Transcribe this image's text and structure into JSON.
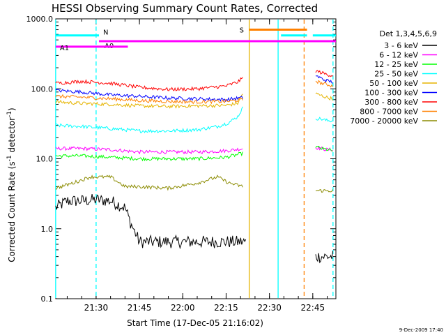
{
  "chart_data": {
    "type": "line",
    "title": "HESSI Observing Summary Count Rates, Corrected",
    "xlabel": "Start Time (17-Dec-05 21:16:02)",
    "ylabel_main": "Corrected Count Rate (s",
    "ylabel_exp1": "-1",
    "ylabel_mid": " detector",
    "ylabel_exp2": "-1",
    "ylabel_end": ")",
    "footer": "9-Dec-2009 17:40",
    "yscale": "log",
    "ylim": [
      0.1,
      1000
    ],
    "xlim": [
      "21:16:02",
      "22:53:00"
    ],
    "x_ticks": [
      "21:30",
      "21:45",
      "22:00",
      "22:15",
      "22:30",
      "22:45"
    ],
    "y_ticks": [
      "0.1",
      "1.0",
      "10.0",
      "100.0",
      "1000.0"
    ],
    "legend_title": "Det 1,3,4,5,6,9",
    "legend_position": "right",
    "series": [
      {
        "name": "3 - 6 keV",
        "color": "#000000",
        "segments": [
          {
            "x": [
              "21:16",
              "21:20",
              "21:25",
              "21:30",
              "21:35",
              "21:40",
              "21:42",
              "21:45",
              "21:50",
              "22:00",
              "22:10",
              "22:20",
              "22:22"
            ],
            "y": [
              2.0,
              2.5,
              2.5,
              2.6,
              2.5,
              2.0,
              1.2,
              0.65,
              0.65,
              0.65,
              0.65,
              0.65,
              0.65
            ]
          },
          {
            "x": [
              "22:46",
              "22:48",
              "22:50",
              "22:52"
            ],
            "y": [
              0.4,
              0.4,
              0.4,
              0.4
            ]
          }
        ]
      },
      {
        "name": "6 - 12 keV",
        "color": "#ff00ff",
        "segments": [
          {
            "x": [
              "21:16",
              "21:25",
              "21:35",
              "21:45",
              "21:55",
              "22:05",
              "22:15",
              "22:21"
            ],
            "y": [
              14,
              14,
              13.5,
              12.5,
              12.5,
              12.5,
              13,
              14
            ]
          },
          {
            "x": [
              "22:46",
              "22:48",
              "22:50",
              "22:52"
            ],
            "y": [
              14.5,
              14,
              13.5,
              13.5
            ]
          }
        ]
      },
      {
        "name": "12 - 25 keV",
        "color": "#00ff00",
        "segments": [
          {
            "x": [
              "21:16",
              "21:25",
              "21:35",
              "21:45",
              "21:55",
              "22:05",
              "22:15",
              "22:21"
            ],
            "y": [
              11,
              11,
              10.5,
              10,
              10,
              10,
              10.5,
              12
            ]
          },
          {
            "x": [
              "22:46",
              "22:48",
              "22:50",
              "22:52"
            ],
            "y": [
              15,
              14,
              13.5,
              13
            ]
          }
        ]
      },
      {
        "name": "25 - 50 keV",
        "color": "#00ffff",
        "segments": [
          {
            "x": [
              "21:16",
              "21:25",
              "21:35",
              "21:45",
              "21:55",
              "22:05",
              "22:12",
              "22:16",
              "22:19",
              "22:21"
            ],
            "y": [
              30,
              29,
              27,
              25,
              25,
              26,
              29,
              33,
              40,
              55
            ]
          },
          {
            "x": [
              "22:46",
              "22:48",
              "22:50",
              "22:52"
            ],
            "y": [
              38,
              37,
              35,
              35
            ]
          }
        ]
      },
      {
        "name": "50 - 100 keV",
        "color": "#e6b400",
        "segments": [
          {
            "x": [
              "21:16",
              "21:25",
              "21:35",
              "21:45",
              "21:55",
              "22:05",
              "22:15",
              "22:19",
              "22:21"
            ],
            "y": [
              65,
              62,
              60,
              57,
              56,
              57,
              58,
              62,
              90
            ]
          },
          {
            "x": [
              "22:46",
              "22:48",
              "22:50",
              "22:52"
            ],
            "y": [
              85,
              80,
              75,
              72
            ]
          }
        ]
      },
      {
        "name": "100 - 300 keV",
        "color": "#0000ff",
        "segments": [
          {
            "x": [
              "21:16",
              "21:25",
              "21:35",
              "21:45",
              "21:55",
              "22:05",
              "22:15",
              "22:21"
            ],
            "y": [
              95,
              90,
              82,
              78,
              74,
              72,
              70,
              75
            ]
          },
          {
            "x": [
              "22:46",
              "22:48",
              "22:50",
              "22:52"
            ],
            "y": [
              155,
              140,
              130,
              125
            ]
          }
        ]
      },
      {
        "name": "300 - 800 keV",
        "color": "#ff0000",
        "segments": [
          {
            "x": [
              "21:16",
              "21:25",
              "21:35",
              "21:45",
              "21:55",
              "22:05",
              "22:15",
              "22:19",
              "22:21"
            ],
            "y": [
              120,
              128,
              120,
              105,
              98,
              100,
              110,
              125,
              145
            ]
          },
          {
            "x": [
              "22:46",
              "22:48",
              "22:50",
              "22:52"
            ],
            "y": [
              180,
              170,
              160,
              155
            ]
          }
        ]
      },
      {
        "name": "800 - 7000 keV",
        "color": "#ff8000",
        "segments": [
          {
            "x": [
              "21:16",
              "21:25",
              "21:35",
              "21:45",
              "21:55",
              "22:05",
              "22:15",
              "22:21"
            ],
            "y": [
              78,
              76,
              72,
              68,
              66,
              65,
              66,
              70
            ]
          },
          {
            "x": [
              "22:46",
              "22:48",
              "22:50",
              "22:52"
            ],
            "y": [
              130,
              120,
              115,
              110
            ]
          }
        ]
      },
      {
        "name": "7000 - 20000 keV",
        "color": "#8b8b00",
        "segments": [
          {
            "x": [
              "21:16",
              "21:22",
              "21:28",
              "21:35",
              "21:40",
              "21:45",
              "21:55",
              "22:05",
              "22:12",
              "22:16",
              "22:21"
            ],
            "y": [
              3.8,
              4.5,
              5.5,
              5.5,
              4.0,
              4.0,
              3.8,
              4.5,
              5.5,
              4.5,
              4.0
            ]
          },
          {
            "x": [
              "22:46",
              "22:48",
              "22:50",
              "22:52"
            ],
            "y": [
              3.5,
              3.5,
              3.5,
              3.5
            ]
          }
        ]
      }
    ],
    "flags": [
      {
        "label": "N",
        "color": "#00ffff",
        "segments": [
          [
            "21:16",
            "21:31"
          ],
          [
            "22:34",
            "22:43"
          ],
          [
            "22:45",
            "22:53"
          ]
        ],
        "level": 580
      },
      {
        "label": "A0",
        "color": "#ff00ff",
        "segments": [
          [
            "21:31",
            "22:53"
          ]
        ],
        "level": 480
      },
      {
        "label": "A1",
        "color": "#ff00ff",
        "segments": [
          [
            "21:16",
            "21:41"
          ]
        ],
        "level": 400
      },
      {
        "label": "S",
        "color": "#ff8000",
        "segments": [
          [
            "22:23",
            "22:43"
          ]
        ],
        "level": 700
      }
    ],
    "vertical_markers": [
      {
        "x": "21:16",
        "color": "#00ffff",
        "style": "solid"
      },
      {
        "x": "21:30",
        "color": "#00ffff",
        "style": "dashed"
      },
      {
        "x": "22:23",
        "color": "#e6b400",
        "style": "solid"
      },
      {
        "x": "22:33",
        "color": "#00ffff",
        "style": "solid"
      },
      {
        "x": "22:42",
        "color": "#ff8000",
        "style": "dashed"
      },
      {
        "x": "22:52",
        "color": "#00ffff",
        "style": "dashed"
      }
    ]
  }
}
